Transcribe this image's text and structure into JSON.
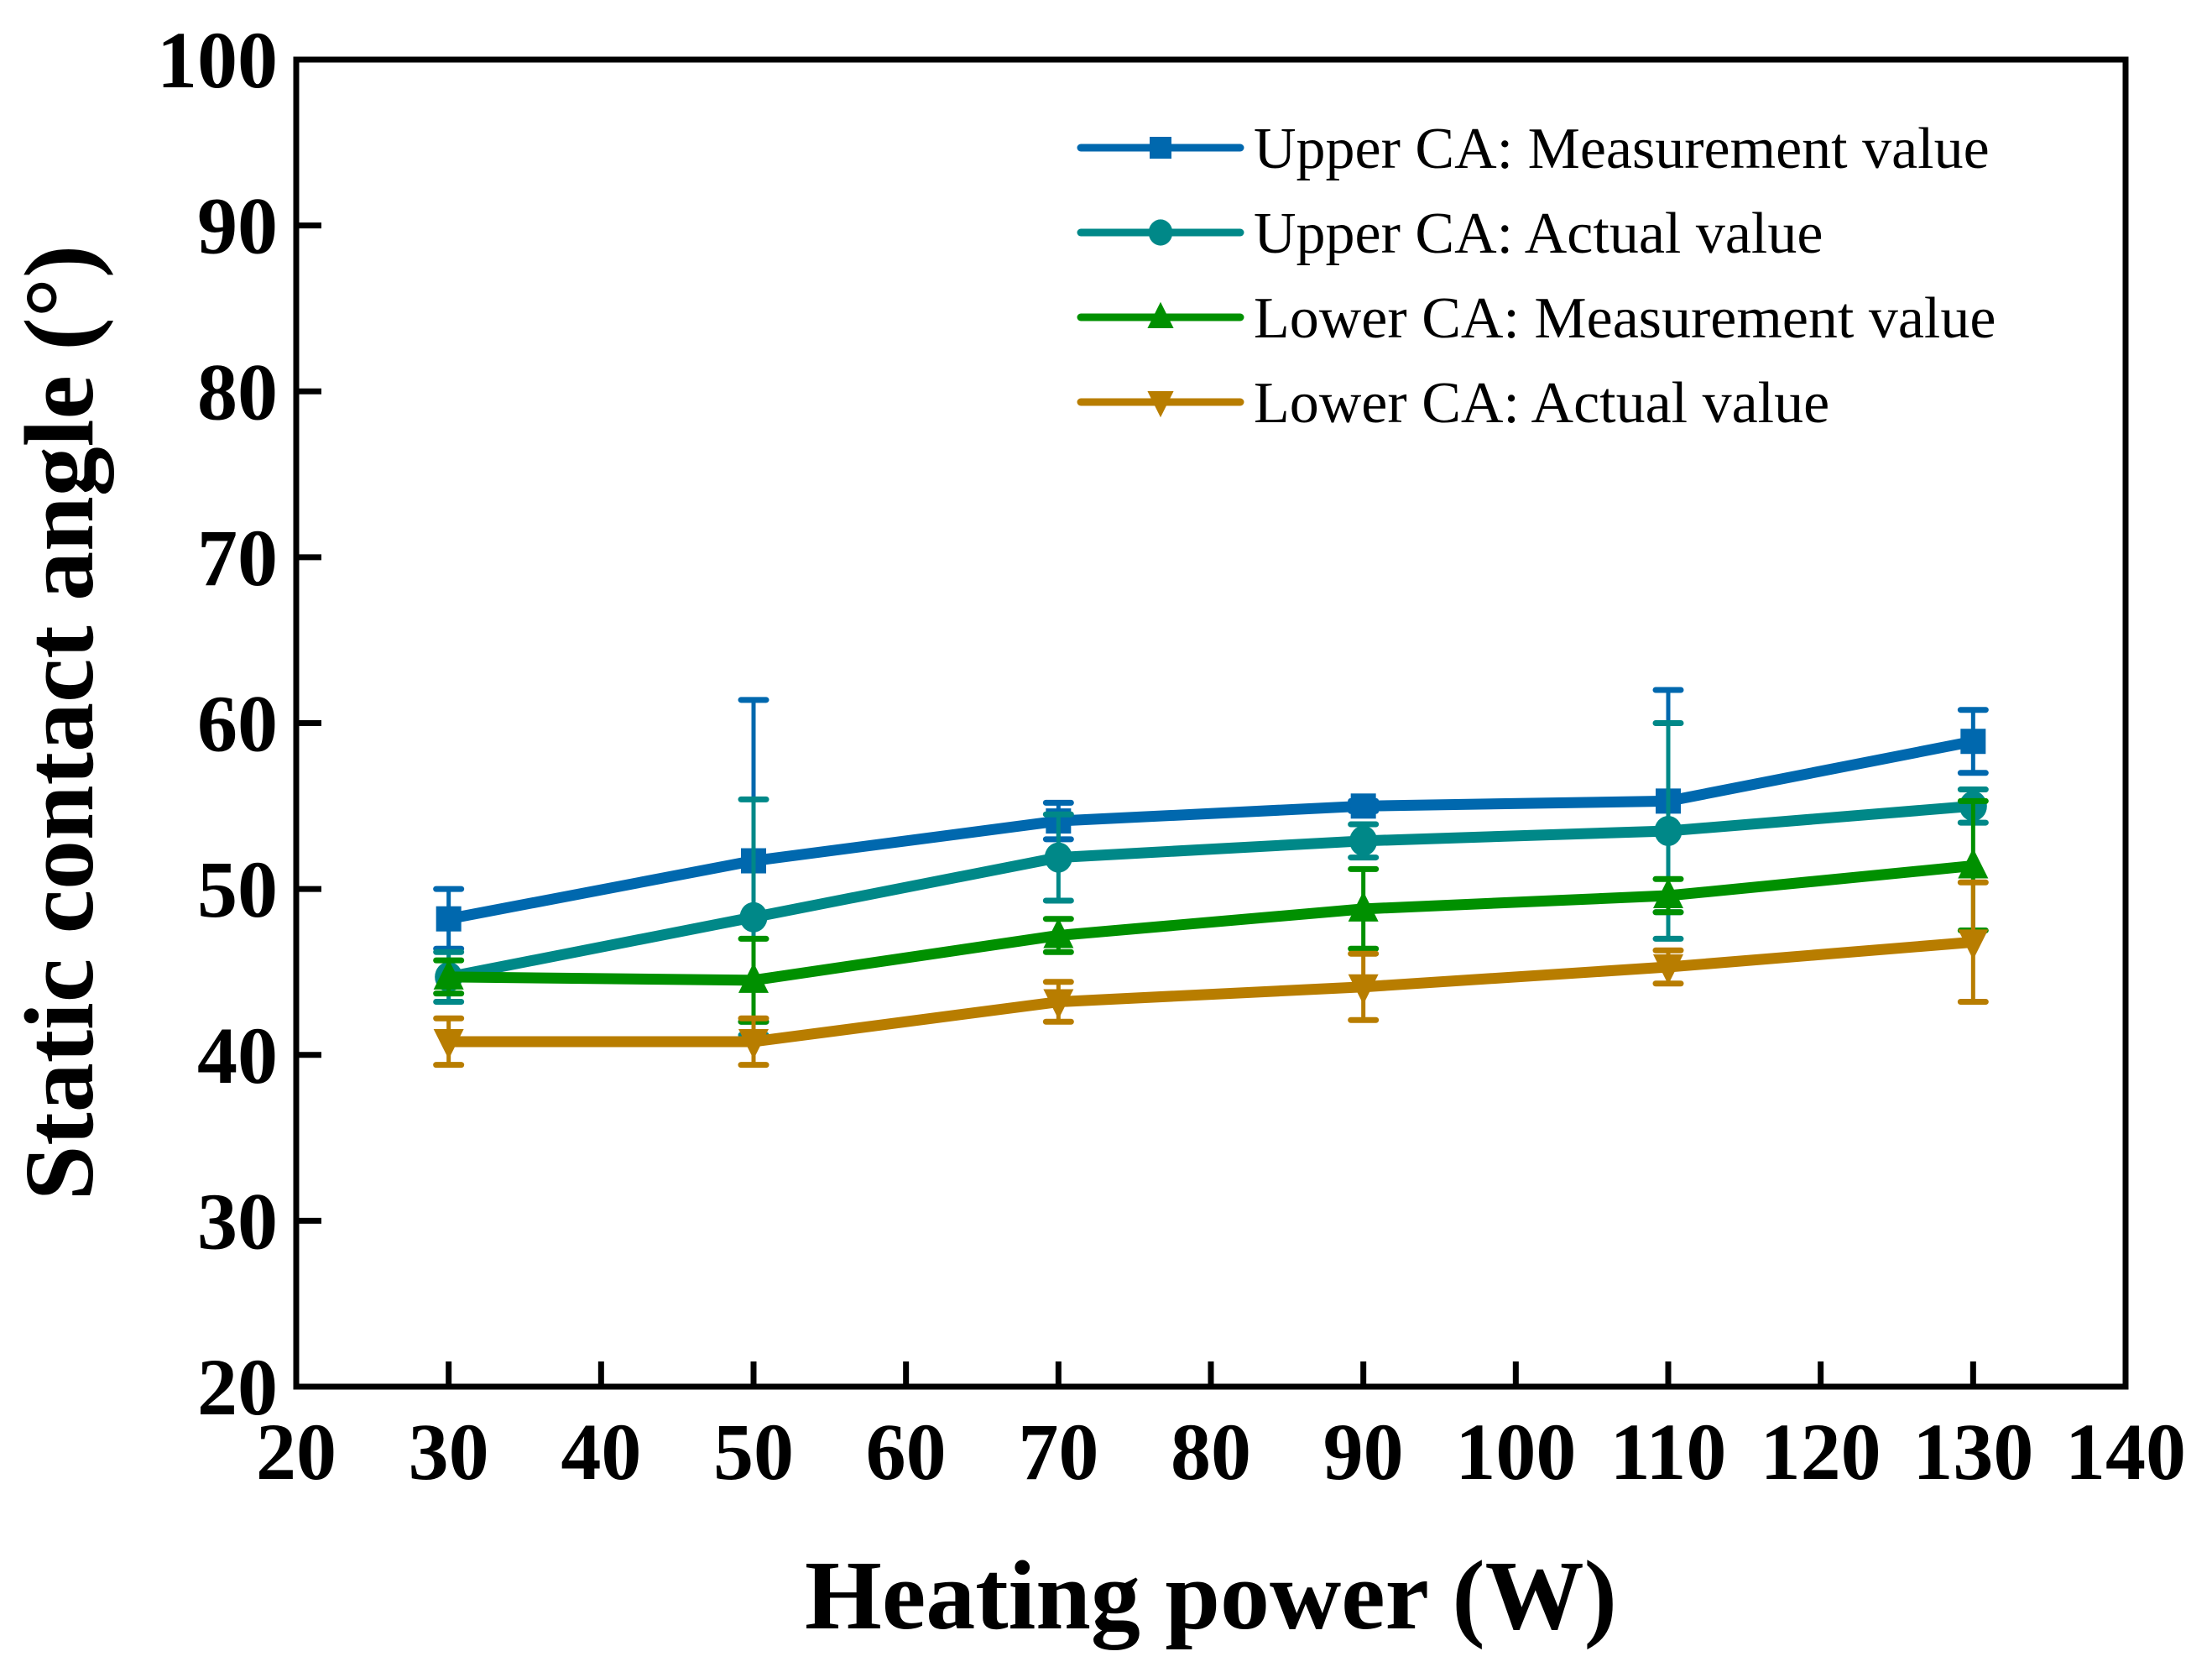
{
  "chart_data": {
    "type": "line",
    "title": "",
    "xlabel": "Heating power (W)",
    "ylabel": "Static contact angle (°)",
    "xlim": [
      20,
      140
    ],
    "ylim": [
      20,
      100
    ],
    "xticks": [
      20,
      30,
      40,
      50,
      60,
      70,
      80,
      90,
      100,
      110,
      120,
      130,
      140
    ],
    "yticks": [
      20,
      30,
      40,
      50,
      60,
      70,
      80,
      90,
      100
    ],
    "grid": false,
    "legend_position": "top-right",
    "x": [
      30,
      50,
      70,
      90,
      110,
      130
    ],
    "series": [
      {
        "name": "Upper CA: Measurement value",
        "marker": "square",
        "color": "#0068AE",
        "values": [
          48.2,
          51.7,
          54.1,
          55.0,
          55.3,
          58.9
        ],
        "errors": [
          1.8,
          9.7,
          1.1,
          0.3,
          6.7,
          1.9
        ]
      },
      {
        "name": "Upper CA: Actual value",
        "marker": "circle",
        "color": "#008888",
        "values": [
          44.7,
          48.3,
          51.9,
          52.9,
          53.5,
          55.0
        ],
        "errors": [
          1.5,
          7.1,
          2.6,
          1.0,
          6.5,
          1.0
        ]
      },
      {
        "name": "Lower CA: Measurement value",
        "marker": "triangle-up",
        "color": "#009000",
        "values": [
          44.7,
          44.5,
          47.2,
          48.8,
          49.6,
          51.4
        ],
        "errors": [
          1.0,
          2.5,
          1.0,
          2.4,
          1.0,
          3.9
        ]
      },
      {
        "name": "Lower CA: Actual value",
        "marker": "triangle-down",
        "color": "#B87D00",
        "values": [
          40.8,
          40.8,
          43.2,
          44.1,
          45.3,
          46.8
        ],
        "errors": [
          1.4,
          1.4,
          1.2,
          2.0,
          1.0,
          3.6
        ]
      }
    ]
  }
}
